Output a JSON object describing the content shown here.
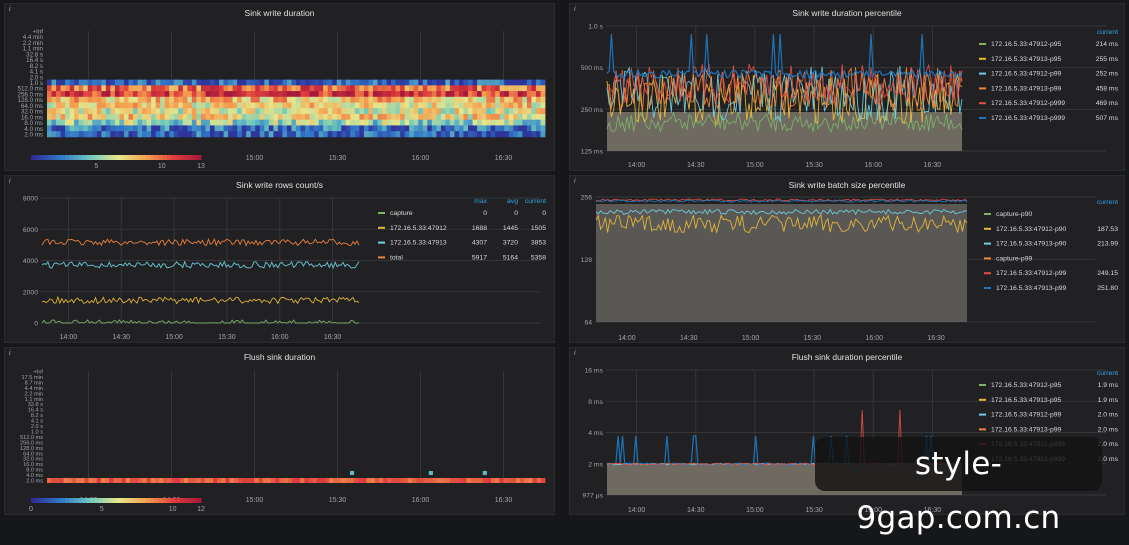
{
  "panels": {
    "p1": {
      "info": "i"
    },
    "p2": {
      "info": "i"
    },
    "p3": {
      "info": "i"
    },
    "p4": {
      "info": "i"
    },
    "p5": {
      "info": "i"
    },
    "p6": {
      "info": "i"
    }
  },
  "watermark": "style-9gap.com.cn",
  "chart_data": [
    {
      "type": "heatmap",
      "title": "Sink write duration",
      "x_ticks": [
        "14:00",
        "14:30",
        "15:00",
        "15:30",
        "16:00",
        "16:30"
      ],
      "y_buckets": [
        "+Inf",
        "4.4 min",
        "2.2 min",
        "1.1 min",
        "32.8 s",
        "16.4 s",
        "8.2 s",
        "4.1 s",
        "2.0 s",
        "1.0 s",
        "512.0 ms",
        "256.0 ms",
        "128.0 ms",
        "64.0 ms",
        "32.0 ms",
        "16.0 ms",
        "8.0 ms",
        "4.0 ms",
        "2.0 ms"
      ],
      "color_scale": {
        "min": 0,
        "max": 13,
        "ticks": [
          "5",
          "10",
          "13"
        ]
      },
      "row_intensity": [
        0,
        0,
        0,
        0,
        0,
        0,
        0,
        0,
        0,
        0.1,
        0.75,
        0.85,
        0.6,
        0.55,
        0.5,
        0.55,
        0.4,
        0.15,
        0.1
      ]
    },
    {
      "type": "line",
      "title": "Sink write duration percentile",
      "y_ticks": [
        "1.0 s",
        "500 ms",
        "250 ms",
        "125 ms"
      ],
      "y_scale": "log",
      "x_ticks": [
        "14:00",
        "14:30",
        "15:00",
        "15:30",
        "16:00",
        "16:30"
      ],
      "legend_header": "current",
      "series": [
        {
          "name": "172.16.5.33:47912-p95",
          "current": "214 ms",
          "color": "#7eb26d"
        },
        {
          "name": "172.16.5.33:47913-p95",
          "current": "255 ms",
          "color": "#eab839"
        },
        {
          "name": "172.16.5.33:47912-p99",
          "current": "252 ms",
          "color": "#6ed0e0"
        },
        {
          "name": "172.16.5.33:47913-p99",
          "current": "458 ms",
          "color": "#ef843c"
        },
        {
          "name": "172.16.5.33:47912-p999",
          "current": "469 ms",
          "color": "#e24d42"
        },
        {
          "name": "172.16.5.33:47913-p999",
          "current": "507 ms",
          "color": "#1f78c1"
        }
      ]
    },
    {
      "type": "line",
      "title": "Sink write rows count/s",
      "y_ticks": [
        "8000",
        "6000",
        "4000",
        "2000",
        "0"
      ],
      "ylim": [
        0,
        8000
      ],
      "x_ticks": [
        "14:00",
        "14:30",
        "15:00",
        "15:30",
        "16:00",
        "16:30"
      ],
      "legend_headers": [
        "max",
        "avg",
        "current"
      ],
      "series": [
        {
          "name": "capture",
          "max": "0",
          "avg": "0",
          "current": "0",
          "color": "#7eb26d",
          "level": 0
        },
        {
          "name": "172.16.5.33:47912",
          "max": "1688",
          "avg": "1445",
          "current": "1505",
          "color": "#eab839",
          "level": 1450
        },
        {
          "name": "172.16.5.33:47913",
          "max": "4307",
          "avg": "3720",
          "current": "3853",
          "color": "#6ed0e0",
          "level": 3720
        },
        {
          "name": "total",
          "max": "5917",
          "avg": "5164",
          "current": "5358",
          "color": "#ef843c",
          "level": 5164
        }
      ]
    },
    {
      "type": "line",
      "title": "Sink write batch size percentile",
      "y_ticks": [
        "256",
        "128",
        "64"
      ],
      "y_scale": "log",
      "x_ticks": [
        "14:00",
        "14:30",
        "15:00",
        "15:30",
        "16:00",
        "16:30"
      ],
      "legend_header": "current",
      "series": [
        {
          "name": "capture-p90",
          "current": "",
          "color": "#7eb26d"
        },
        {
          "name": "172.16.5.33:47912-p90",
          "current": "187.53",
          "color": "#eab839"
        },
        {
          "name": "172.16.5.33:47913-p90",
          "current": "213.99",
          "color": "#6ed0e0"
        },
        {
          "name": "capture-p99",
          "current": "",
          "color": "#ef843c"
        },
        {
          "name": "172.16.5.33:47912-p99",
          "current": "249.15",
          "color": "#e24d42"
        },
        {
          "name": "172.16.5.33:47913-p99",
          "current": "251.80",
          "color": "#1f78c1"
        }
      ]
    },
    {
      "type": "heatmap",
      "title": "Flush sink duration",
      "x_ticks": [
        "14:00",
        "14:30",
        "15:00",
        "15:30",
        "16:00",
        "16:30"
      ],
      "y_buckets": [
        "+Inf",
        "17.5 min",
        "8.7 min",
        "4.4 min",
        "2.2 min",
        "1.1 min",
        "32.8 s",
        "16.4 s",
        "8.2 s",
        "4.1 s",
        "2.0 s",
        "1.0 s",
        "512.0 ms",
        "256.0 ms",
        "128.0 ms",
        "64.0 ms",
        "32.0 ms",
        "16.0 ms",
        "8.0 ms",
        "4.0 ms",
        "2.0 ms"
      ],
      "color_scale": {
        "min": 0,
        "max": 12,
        "ticks": [
          "0",
          "5",
          "10",
          "12"
        ]
      }
    },
    {
      "type": "line",
      "title": "Flush sink duration percentile",
      "y_ticks": [
        "16 ms",
        "8 ms",
        "4 ms",
        "2 ms",
        "977 µs"
      ],
      "y_scale": "log",
      "x_ticks": [
        "14:00",
        "14:30",
        "15:00",
        "15:30",
        "16:00",
        "16:30"
      ],
      "legend_header": "current",
      "series": [
        {
          "name": "172.16.5.33:47912-p95",
          "current": "1.9 ms",
          "color": "#7eb26d"
        },
        {
          "name": "172.16.5.33:47913-p95",
          "current": "1.9 ms",
          "color": "#eab839"
        },
        {
          "name": "172.16.5.33:47912-p99",
          "current": "2.0 ms",
          "color": "#6ed0e0"
        },
        {
          "name": "172.16.5.33:47913-p99",
          "current": "2.0 ms",
          "color": "#ef843c"
        },
        {
          "name": "172.16.5.33:47912-p999",
          "current": "2.0 ms",
          "color": "#e24d42"
        },
        {
          "name": "172.16.5.33:47913-p999",
          "current": "2.0 ms",
          "color": "#1f78c1"
        }
      ]
    }
  ]
}
